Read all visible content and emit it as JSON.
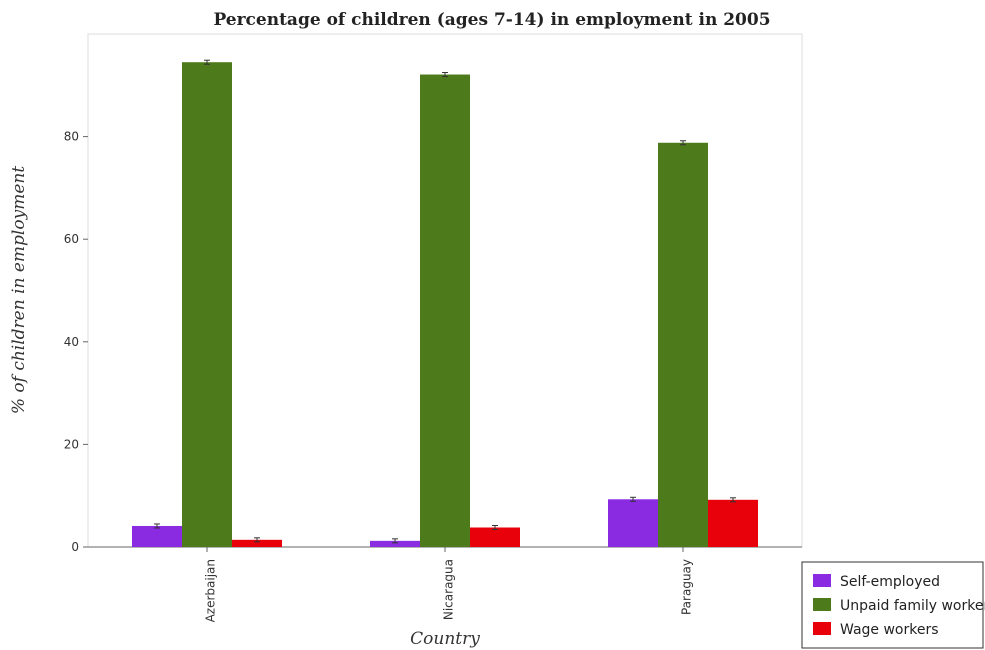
{
  "chart_data": {
    "type": "bar",
    "title": "Percentage of children (ages 7-14) in employment in 2005",
    "xlabel": "Country",
    "ylabel": "% of children in employment",
    "categories": [
      "Azerbaijan",
      "Nicaragua",
      "Paraguay"
    ],
    "series": [
      {
        "name": "Self-employed",
        "values": [
          4.1,
          1.2,
          9.3
        ],
        "color": "#8a2be2"
      },
      {
        "name": "Unpaid family workers",
        "values": [
          94.5,
          92.1,
          78.8
        ],
        "color": "#4d7a1a"
      },
      {
        "name": "Wage workers",
        "values": [
          1.4,
          3.8,
          9.2
        ],
        "color": "#e8000b"
      }
    ],
    "ylim": [
      0,
      100
    ],
    "yticks": [
      0,
      20,
      40,
      60,
      80
    ],
    "grid": false,
    "legend_position": "bottom-right"
  }
}
